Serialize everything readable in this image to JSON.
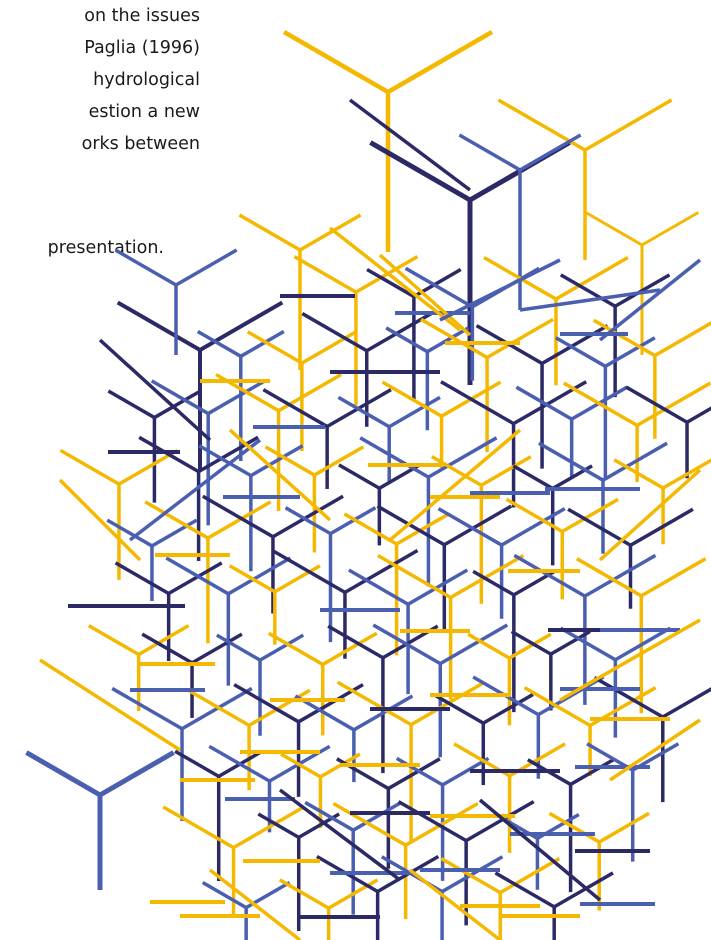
{
  "text": {
    "lines": [
      "on the issues",
      "Paglia (1996)",
      "hydrological",
      "estion a new",
      "orks between"
    ],
    "tail": "presentation."
  },
  "colors": {
    "yellow": "#f5b800",
    "blue": "#4a5fb0",
    "navy": "#2b2a66",
    "text": "#1a1a1a"
  }
}
